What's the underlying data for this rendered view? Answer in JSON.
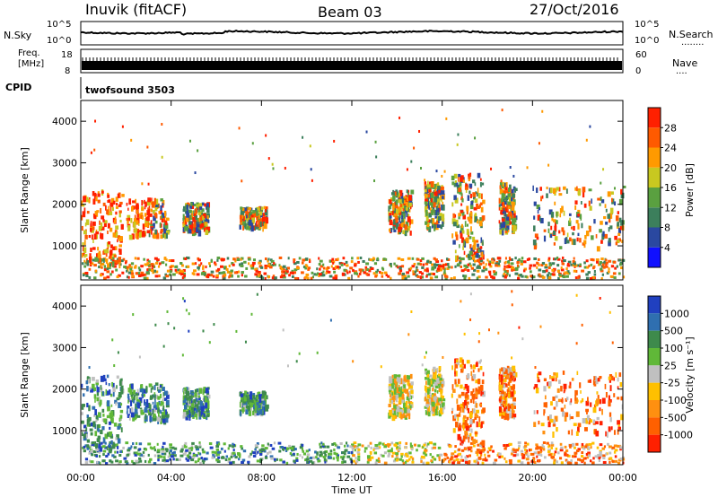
{
  "header": {
    "station": "Inuvik (fitACF)",
    "beam": "Beam 03",
    "date": "27/Oct/2016"
  },
  "noise_panel": {
    "left_label": "N.Sky",
    "right_label": "N.Search",
    "right_key": "........",
    "ticks": [
      "10^5",
      "10^0"
    ]
  },
  "freq_panel": {
    "left_label_1": "Freq.",
    "left_label_2": "[MHz]",
    "ticks_left": [
      "18",
      "8"
    ],
    "right_label": "Nave",
    "right_key": "....",
    "ticks_right": [
      "60",
      "0"
    ]
  },
  "cpid_panel": {
    "label": "CPID",
    "value": "twofsound 3503"
  },
  "colors": {
    "power_scale": [
      "#1010ff",
      "#2a48a0",
      "#3c7f5c",
      "#5aa040",
      "#c8c820",
      "#ff9a00",
      "#ff5a00",
      "#ff2000"
    ],
    "velocity_scale": [
      "#2040c0",
      "#2f6fb0",
      "#3e8a4c",
      "#60b838",
      "#c0c0c0",
      "#ffc000",
      "#ff9010",
      "#ff6000",
      "#ff2000"
    ]
  },
  "chart_data": [
    {
      "type": "heatmap",
      "title": "",
      "ylabel": "Slant Range [km]",
      "y_ticks": [
        "1000",
        "2000",
        "3000",
        "4000"
      ],
      "ylim": [
        180,
        4500
      ],
      "colorbar_label": "Power [dB]",
      "colorbar_ticks": [
        "4",
        "8",
        "12",
        "16",
        "20",
        "24",
        "28"
      ],
      "colorbar_range": [
        0,
        30
      ]
    },
    {
      "type": "heatmap",
      "title": "",
      "ylabel": "Slant Range [km]",
      "y_ticks": [
        "1000",
        "2000",
        "3000",
        "4000"
      ],
      "ylim": [
        180,
        4500
      ],
      "colorbar_label": "Velocity [m s⁻¹]",
      "colorbar_ticks": [
        "1000",
        "500",
        "100",
        "25",
        "-25",
        "-100",
        "-500",
        "-1000"
      ],
      "xlabel": "Time UT",
      "x_ticks": [
        "00:00",
        "04:00",
        "08:00",
        "12:00",
        "16:00",
        "20:00",
        "00:00"
      ],
      "xlim": [
        "00:00",
        "24:00"
      ]
    }
  ]
}
